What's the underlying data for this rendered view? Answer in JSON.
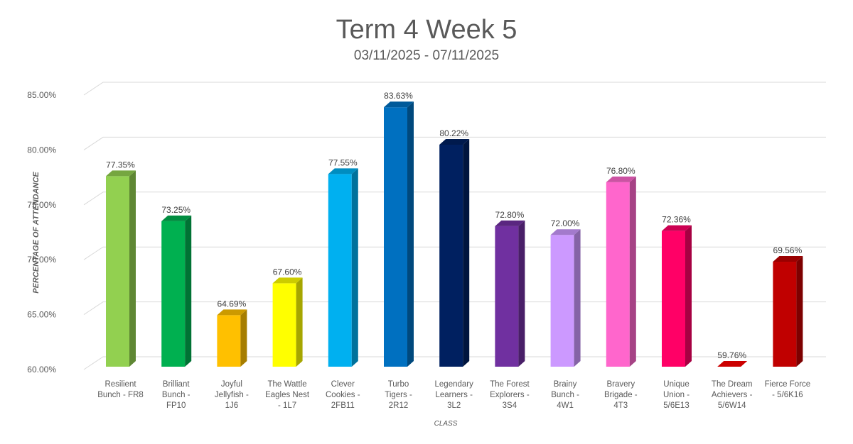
{
  "chart_data": {
    "type": "bar",
    "style": "3d-column",
    "title": "Term 4 Week 5",
    "subtitle": "03/11/2025 - 07/11/2025",
    "xlabel": "CLASS",
    "ylabel": "PERCENTAGE OF ATTENDANCE",
    "ylim": [
      60,
      85
    ],
    "yticks": [
      "60.00%",
      "65.00%",
      "70.00%",
      "75.00%",
      "80.00%",
      "85.00%"
    ],
    "grid": true,
    "legend": "none",
    "categories": [
      [
        "Resilient",
        "Bunch - FR8"
      ],
      [
        "Brilliant",
        "Bunch -",
        "FP10"
      ],
      [
        "Joyful",
        "Jellyfish -",
        "1J6"
      ],
      [
        "The Wattle",
        "Eagles Nest",
        "- 1L7"
      ],
      [
        "Clever",
        "Cookies -",
        "2FB11"
      ],
      [
        "Turbo",
        "Tigers -",
        "2R12"
      ],
      [
        "Legendary",
        "Learners -",
        "3L2"
      ],
      [
        "The Forest",
        "Explorers -",
        "3S4"
      ],
      [
        "Brainy",
        "Bunch -",
        "4W1"
      ],
      [
        "Bravery",
        "Brigade -",
        "4T3"
      ],
      [
        "Unique",
        "Union -",
        "5/6E13"
      ],
      [
        "The Dream",
        "Achievers -",
        "5/6W14"
      ],
      [
        "Fierce Force",
        "- 5/6K16"
      ]
    ],
    "values": [
      77.35,
      73.25,
      64.69,
      67.6,
      77.55,
      83.63,
      80.22,
      72.8,
      72.0,
      76.8,
      72.36,
      59.76,
      69.56
    ],
    "data_labels": [
      "77.35%",
      "73.25%",
      "64.69%",
      "67.60%",
      "77.55%",
      "83.63%",
      "80.22%",
      "72.80%",
      "72.00%",
      "76.80%",
      "72.36%",
      "59.76%",
      "69.56%"
    ],
    "colors": [
      "#92d050",
      "#00b050",
      "#ffc000",
      "#ffff00",
      "#00b0f0",
      "#0070c0",
      "#002060",
      "#7030a0",
      "#cc99ff",
      "#ff66cc",
      "#ff0066",
      "#ff0000",
      "#c00000"
    ]
  }
}
